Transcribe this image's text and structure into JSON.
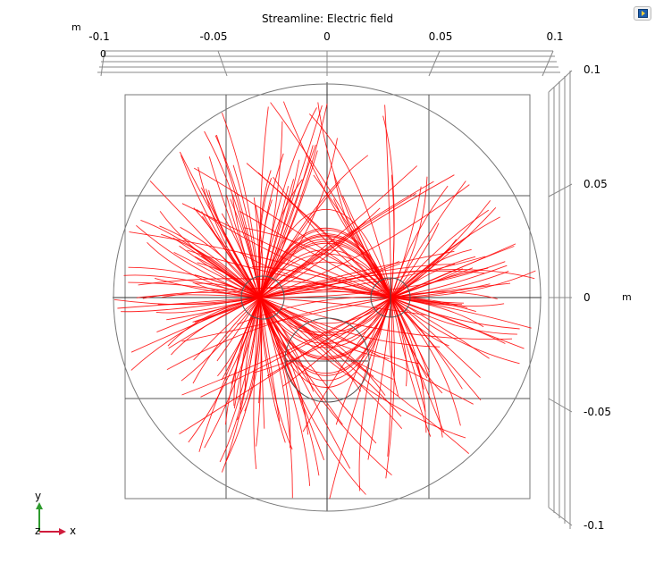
{
  "plot": {
    "title": "Streamline: Electric field",
    "unit_top": "m",
    "unit_right": "m",
    "x_ticks": [
      "-0.1",
      "-0.05",
      "0",
      "0.05",
      "0.1"
    ],
    "y_ticks": [
      "0.1",
      "0.05",
      "0",
      "-0.05",
      "-0.1"
    ],
    "top_zero": "0",
    "streamline_color": "#ff0000"
  },
  "axes_triad": {
    "y": "y",
    "x": "x",
    "z": "z",
    "y_color": "#2e9b2e",
    "x_color": "#d01c3c"
  },
  "toolbar": {
    "corner_icon": "graphics-window-icon"
  }
}
